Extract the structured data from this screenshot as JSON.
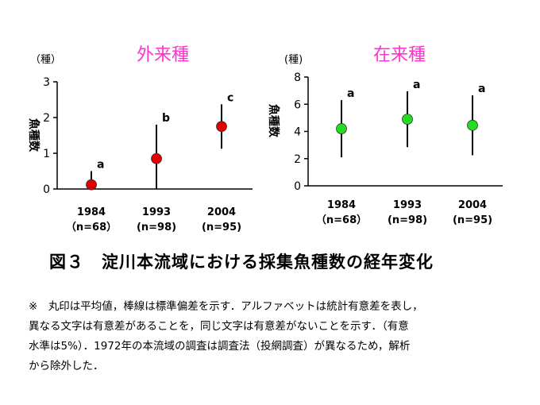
{
  "chart_data": [
    {
      "type": "scatter",
      "title": "外来種",
      "ylabel": "魚種数",
      "unit": "（種）",
      "ylim": [
        0,
        3
      ],
      "yticks": [
        "0",
        "1",
        "2",
        "3"
      ],
      "categories": [
        "1984",
        "1993",
        "2004"
      ],
      "sample_sizes": [
        "（n=68）",
        "(n=98)",
        "(n=95)"
      ],
      "values": [
        0.12,
        0.85,
        1.75
      ],
      "sd": [
        0.38,
        0.95,
        0.62
      ],
      "significance": [
        "a",
        "b",
        "c"
      ],
      "marker_color": "#e00000",
      "grid": false
    },
    {
      "type": "scatter",
      "title": "在来種",
      "ylabel": "魚種数",
      "unit": "(種)",
      "ylim": [
        0,
        8
      ],
      "yticks": [
        "0",
        "2",
        "4",
        "6",
        "8"
      ],
      "categories": [
        "1984",
        "1993",
        "2004"
      ],
      "sample_sizes": [
        "（n=68）",
        "(n=98)",
        "(n=95)"
      ],
      "values": [
        4.2,
        4.9,
        4.45
      ],
      "sd": [
        2.1,
        2.05,
        2.2
      ],
      "significance": [
        "a",
        "a",
        "a"
      ],
      "marker_color": "#22dd22",
      "grid": false
    }
  ],
  "caption": "図３　淀川本流域における採集魚種数の経年変化",
  "note_lines": [
    "※　丸印は平均値，棒線は標準偏差を示す．アルファベットは統計有意差を表し，",
    "異なる文字は有意差があることを，同じ文字は有意差がないことを示す．（有意",
    "水準は5%）．1972年の本流域の調査は調査法（投網調査）が異なるため，解析",
    "から除外した．"
  ]
}
